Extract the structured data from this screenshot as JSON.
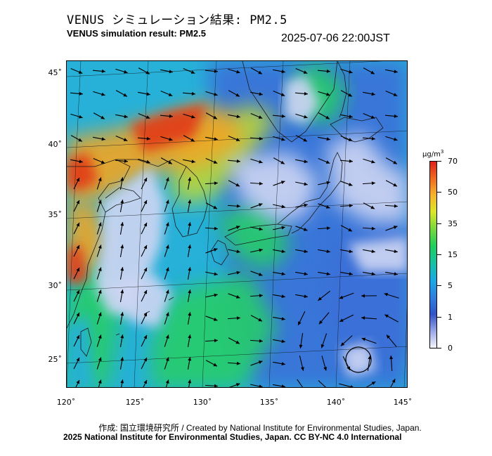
{
  "header": {
    "title_jp": "VENUS シミュレーション結果: PM2.5",
    "title_en": "VENUS simulation result: PM2.5",
    "timestamp": "2025-07-06 22:00JST"
  },
  "map": {
    "variable": "PM2.5",
    "latitude_labels": [
      "45˚",
      "40˚",
      "35˚",
      "30˚",
      "25˚"
    ],
    "longitude_labels": [
      "120˚",
      "125˚",
      "130˚",
      "135˚",
      "140˚",
      "145˚"
    ],
    "field_colors": {
      "very_low": "#cfd6f3",
      "low": "#3b6fd8",
      "medium_low": "#27b0d8",
      "medium": "#25cc6a",
      "medium_high": "#b9d63a",
      "high": "#f2a623",
      "very_high": "#e23b17",
      "coast": "#1a1a1a",
      "wind_arrow": "#000000"
    },
    "features": [
      "wind-vector-field",
      "typhoon-circulation",
      "coastlines",
      "graticule"
    ]
  },
  "colorbar": {
    "unit": "μg/m",
    "unit_exponent": "3",
    "labels": [
      "70",
      "50",
      "35",
      "15",
      "5",
      "1",
      "0"
    ],
    "colors": [
      "#e0201a",
      "#f06a1e",
      "#f7b32c",
      "#dce62a",
      "#7ad83c",
      "#1fcf5a",
      "#18c0a8",
      "#1aa8e6",
      "#2e7ee0",
      "#3154c8",
      "#9aa6e6",
      "#f4f4fb"
    ]
  },
  "footer": {
    "credit_line": "作成: 国立環境研究所 / Created by National Institute for Environmental Studies, Japan.",
    "copyright_line": "2025 National Institute for Environmental Studies, Japan. CC BY-NC 4.0 International"
  }
}
